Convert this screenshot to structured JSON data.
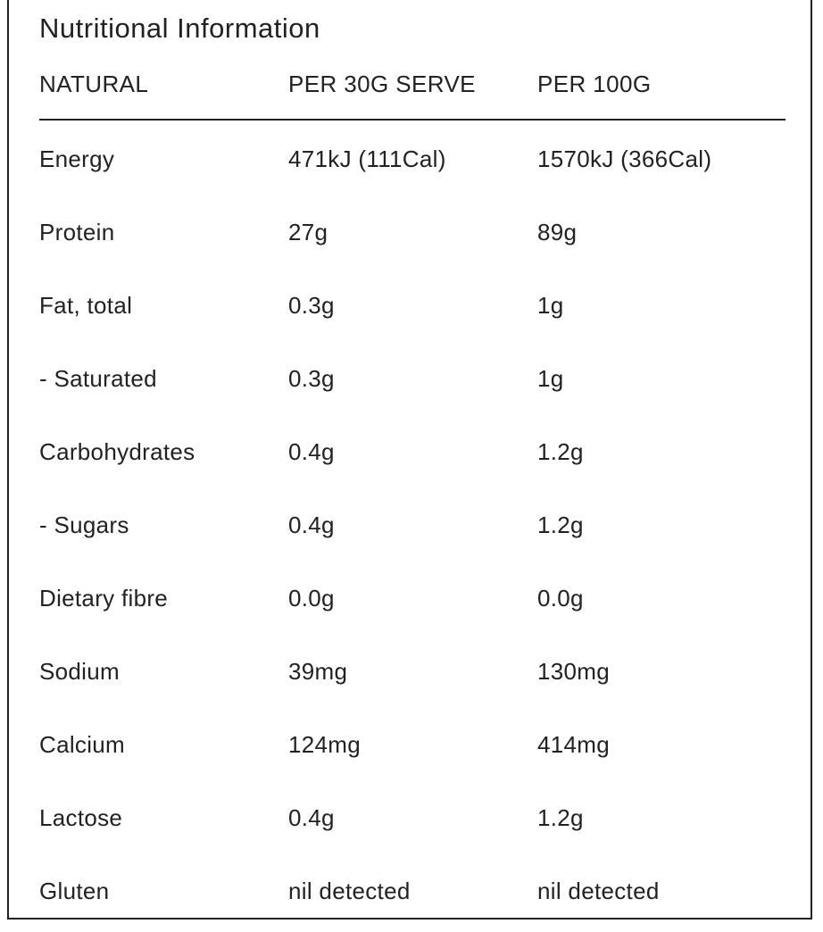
{
  "title": "Nutritional Information",
  "headers": {
    "label": "NATURAL",
    "per_serve": "PER 30G SERVE",
    "per_100g": "PER 100G"
  },
  "rows": [
    {
      "label": "Energy",
      "per_serve": "471kJ (111Cal)",
      "per_100g": "1570kJ (366Cal)"
    },
    {
      "label": "Protein",
      "per_serve": "27g",
      "per_100g": "89g"
    },
    {
      "label": "Fat, total",
      "per_serve": "0.3g",
      "per_100g": "1g"
    },
    {
      "label": "- Saturated",
      "per_serve": "0.3g",
      "per_100g": "1g"
    },
    {
      "label": "Carbohydrates",
      "per_serve": "0.4g",
      "per_100g": "1.2g"
    },
    {
      "label": "- Sugars",
      "per_serve": "0.4g",
      "per_100g": "1.2g"
    },
    {
      "label": "Dietary fibre",
      "per_serve": "0.0g",
      "per_100g": "0.0g"
    },
    {
      "label": "Sodium",
      "per_serve": "39mg",
      "per_100g": "130mg"
    },
    {
      "label": "Calcium",
      "per_serve": "124mg",
      "per_100g": "414mg"
    },
    {
      "label": "Lactose",
      "per_serve": "0.4g",
      "per_100g": "1.2g"
    },
    {
      "label": "Gluten",
      "per_serve": "nil detected",
      "per_100g": "nil detected"
    }
  ]
}
